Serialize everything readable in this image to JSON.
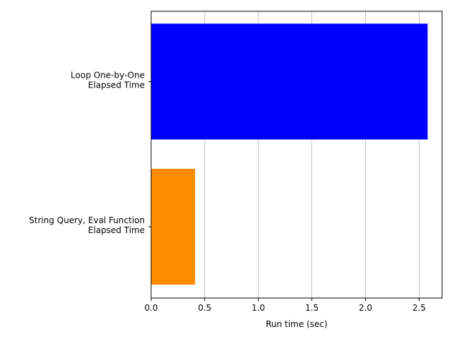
{
  "chart_data": {
    "type": "bar",
    "orientation": "horizontal",
    "categories": [
      [
        "Loop One-by-One",
        "Elapsed Time"
      ],
      [
        "String Query, Eval Function",
        "Elapsed Time"
      ]
    ],
    "values": [
      2.58,
      0.41
    ],
    "colors": [
      "#0000ff",
      "#ff8c00"
    ],
    "title": "",
    "xlabel": "Run time (sec)",
    "ylabel": "",
    "xlim": [
      0,
      2.715
    ],
    "xticks": [
      0.0,
      0.5,
      1.0,
      1.5,
      2.0,
      2.5
    ],
    "xtick_labels": [
      "0.0",
      "0.5",
      "1.0",
      "1.5",
      "2.0",
      "2.5"
    ],
    "grid": "x-axis vertical lines",
    "legend": "none"
  }
}
